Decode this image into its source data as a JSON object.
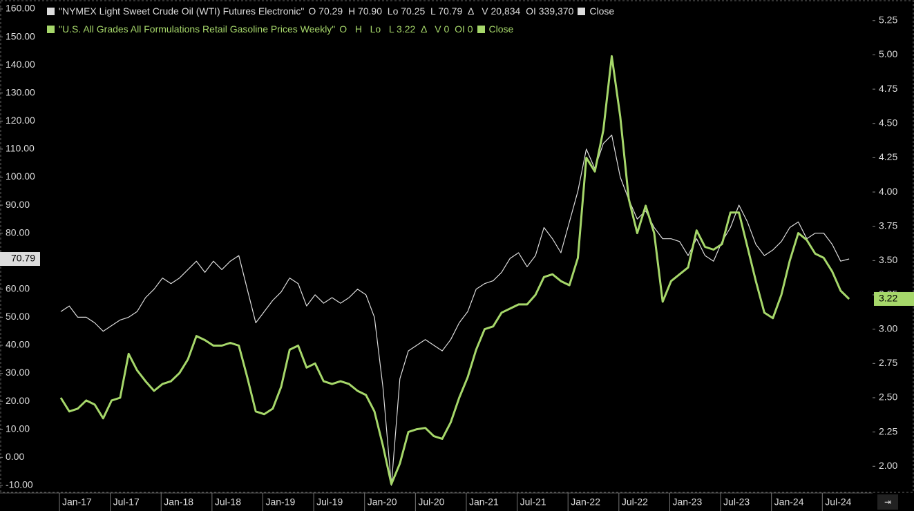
{
  "chart_data": {
    "type": "line",
    "categories": [
      "Jan-17",
      null,
      null,
      null,
      null,
      null,
      "Jul-17",
      null,
      null,
      null,
      null,
      null,
      "Jan-18",
      null,
      null,
      null,
      null,
      null,
      "Jul-18",
      null,
      null,
      null,
      null,
      null,
      "Jan-19",
      null,
      null,
      null,
      null,
      null,
      "Jul-19",
      null,
      null,
      null,
      null,
      null,
      "Jan-20",
      null,
      null,
      null,
      null,
      null,
      "Jul-20",
      null,
      null,
      null,
      null,
      null,
      "Jan-21",
      null,
      null,
      null,
      null,
      null,
      "Jul-21",
      null,
      null,
      null,
      null,
      null,
      "Jan-22",
      null,
      null,
      null,
      null,
      null,
      "Jul-22",
      null,
      null,
      null,
      null,
      null,
      "Jan-23",
      null,
      null,
      null,
      null,
      null,
      "Jul-23",
      null,
      null,
      null,
      null,
      null,
      "Jan-24",
      null,
      null,
      null,
      null,
      null,
      "Jul-24",
      null,
      null,
      null
    ],
    "series": [
      {
        "name": "\"NYMEX Light Sweet Crude Oil (WTI) Futures Electronic\"",
        "color": "#dcdcdc",
        "stats": "O 70.29  H 70.90  Lo 70.25  L 70.79  Δ   V 20,834  OI 339,370",
        "mode": "Close",
        "values": [
          52,
          54,
          50,
          50,
          48,
          45,
          47,
          49,
          50,
          52,
          57,
          60,
          64,
          62,
          64,
          67,
          70,
          66,
          70,
          67,
          70,
          72,
          60,
          48,
          52,
          56,
          59,
          64,
          62,
          54,
          58,
          55,
          57,
          55,
          57,
          60,
          58,
          50,
          25,
          -10,
          28,
          38,
          40,
          42,
          40,
          38,
          42,
          48,
          52,
          60,
          62,
          63,
          66,
          71,
          73,
          68,
          72,
          82,
          78,
          73,
          84,
          95,
          110,
          103,
          112,
          115,
          100,
          92,
          85,
          88,
          82,
          78,
          78,
          77,
          72,
          78,
          72,
          70,
          77,
          82,
          90,
          84,
          76,
          72,
          74,
          77,
          82,
          84,
          78,
          80,
          80,
          76,
          70,
          70.79
        ]
      },
      {
        "name": "\"U.S. All Grades All Formulations Retail Gasoline Prices Weekly\"",
        "color": "#a6d76a",
        "axis": "y2",
        "stats": "O   H   Lo   L 3.22  Δ   V 0  OI 0",
        "mode": "Close",
        "values": [
          2.5,
          2.4,
          2.42,
          2.48,
          2.45,
          2.35,
          2.48,
          2.5,
          2.82,
          2.7,
          2.62,
          2.55,
          2.6,
          2.62,
          2.68,
          2.78,
          2.95,
          2.92,
          2.88,
          2.88,
          2.9,
          2.88,
          2.65,
          2.4,
          2.38,
          2.42,
          2.58,
          2.85,
          2.88,
          2.72,
          2.75,
          2.62,
          2.6,
          2.62,
          2.6,
          2.55,
          2.52,
          2.4,
          2.15,
          1.87,
          2.02,
          2.25,
          2.27,
          2.28,
          2.22,
          2.2,
          2.32,
          2.5,
          2.65,
          2.85,
          3.0,
          3.02,
          3.12,
          3.15,
          3.18,
          3.18,
          3.25,
          3.38,
          3.4,
          3.35,
          3.32,
          3.52,
          4.25,
          4.15,
          4.45,
          4.99,
          4.55,
          3.95,
          3.7,
          3.9,
          3.7,
          3.2,
          3.35,
          3.4,
          3.45,
          3.72,
          3.6,
          3.58,
          3.62,
          3.85,
          3.85,
          3.6,
          3.35,
          3.12,
          3.08,
          3.25,
          3.5,
          3.7,
          3.65,
          3.55,
          3.52,
          3.42,
          3.28,
          3.22
        ]
      }
    ],
    "ylim": [
      -12.5,
      163.2
    ],
    "yticks": [
      {
        "value": -10,
        "label": "-10.00"
      },
      {
        "value": 0,
        "label": "0.00"
      },
      {
        "value": 10,
        "label": "10.00"
      },
      {
        "value": 20,
        "label": "20.00"
      },
      {
        "value": 30,
        "label": "30.00"
      },
      {
        "value": 40,
        "label": "40.00"
      },
      {
        "value": 50,
        "label": "50.00"
      },
      {
        "value": 60,
        "label": "60.00"
      },
      {
        "value": 70,
        "label": "70.00"
      },
      {
        "value": 80,
        "label": "80.00"
      },
      {
        "value": 90,
        "label": "90.00"
      },
      {
        "value": 100,
        "label": "100.00"
      },
      {
        "value": 110,
        "label": "110.00"
      },
      {
        "value": 120,
        "label": "120.00"
      },
      {
        "value": 130,
        "label": "130.00"
      },
      {
        "value": 140,
        "label": "140.00"
      },
      {
        "value": 150,
        "label": "150.00"
      },
      {
        "value": 160,
        "label": "160.00"
      }
    ],
    "y2lim": [
      1.81,
      5.4
    ],
    "y2ticks": [
      {
        "value": 2,
        "label": "2.00"
      },
      {
        "value": 2.25,
        "label": "2.25"
      },
      {
        "value": 2.5,
        "label": "2.50"
      },
      {
        "value": 2.75,
        "label": "2.75"
      },
      {
        "value": 3,
        "label": "3.00"
      },
      {
        "value": 3.25,
        "label": "3.25"
      },
      {
        "value": 3.5,
        "label": "3.50"
      },
      {
        "value": 3.75,
        "label": "3.75"
      },
      {
        "value": 4,
        "label": "4.00"
      },
      {
        "value": 4.25,
        "label": "4.25"
      },
      {
        "value": 4.5,
        "label": "4.50"
      },
      {
        "value": 4.75,
        "label": "4.75"
      },
      {
        "value": 5,
        "label": "5.00"
      },
      {
        "value": 5.25,
        "label": "5.25"
      }
    ]
  }
}
